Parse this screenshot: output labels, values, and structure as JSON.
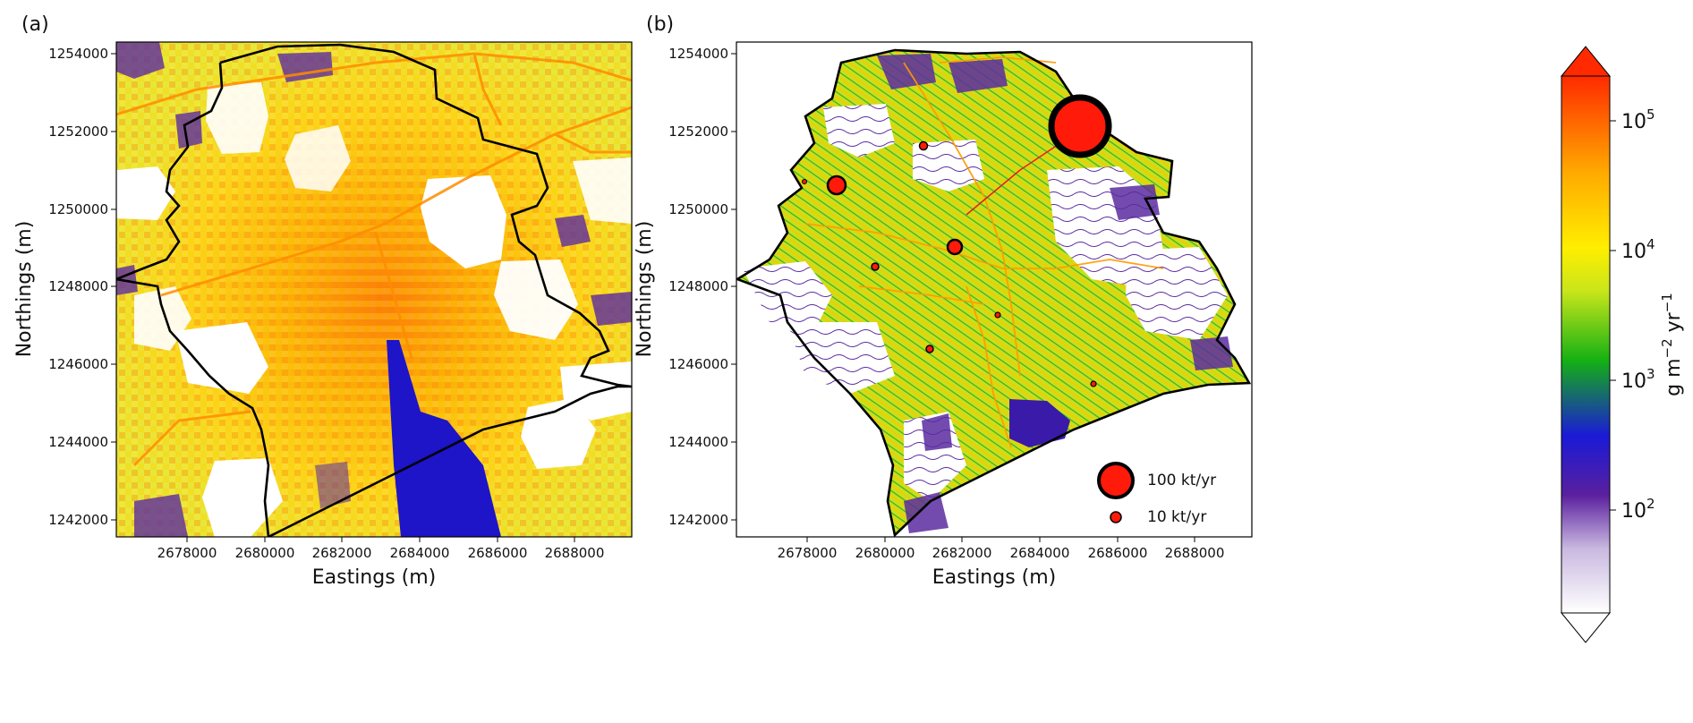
{
  "panels": [
    {
      "id": "a",
      "label": "(a)",
      "xlabel": "Eastings (m)",
      "ylabel": "Northings (m)",
      "xticks": [
        "2678000",
        "2680000",
        "2682000",
        "2684000",
        "2686000",
        "2688000"
      ],
      "yticks": [
        "1254000",
        "1252000",
        "1250000",
        "1248000",
        "1246000",
        "1244000",
        "1242000"
      ]
    },
    {
      "id": "b",
      "label": "(b)",
      "xlabel": "Eastings (m)",
      "ylabel": "Northings (m)",
      "xticks": [
        "2678000",
        "2680000",
        "2682000",
        "2684000",
        "2686000",
        "2688000"
      ],
      "yticks": [
        "1254000",
        "1252000",
        "1250000",
        "1248000",
        "1246000",
        "1244000",
        "1242000"
      ]
    }
  ],
  "colorbar": {
    "label": "g m",
    "label_sup1": "−2",
    "label_mid": " yr",
    "label_sup2": "−1",
    "ticks": [
      {
        "base": "10",
        "exp": "5"
      },
      {
        "base": "10",
        "exp": "4"
      },
      {
        "base": "10",
        "exp": "3"
      },
      {
        "base": "10",
        "exp": "2"
      }
    ],
    "scale": "log",
    "colors": [
      "#ffffff",
      "#5a1f9e",
      "#1a1ad6",
      "#14b014",
      "#c9e61a",
      "#ffee00",
      "#ffaa00",
      "#ff2a00"
    ]
  },
  "legend": {
    "items": [
      {
        "label": "100 kt/yr"
      },
      {
        "label": "10 kt/yr"
      }
    ]
  },
  "colors": {
    "boundary": "#000000",
    "point_source": "#ff1a0a",
    "lake": "#1e14c8",
    "forest_low": "#5b2ca0"
  }
}
